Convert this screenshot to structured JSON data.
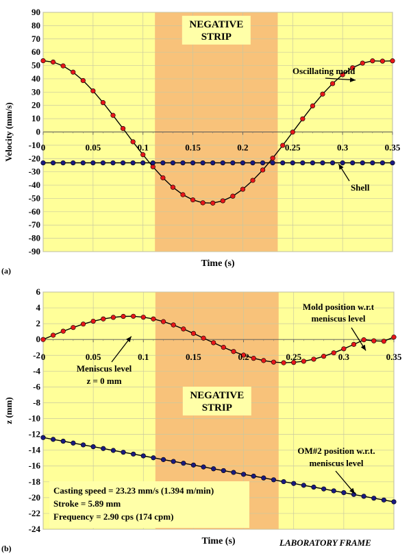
{
  "chart_data": [
    {
      "type": "line",
      "panel_label": "(a)",
      "xlabel": "Time (s)",
      "ylabel": "Velocity (mm/s)",
      "xlim": [
        0,
        0.35
      ],
      "ylim": [
        -90,
        90
      ],
      "x_ticks": [
        0,
        0.05,
        0.1,
        0.15,
        0.2,
        0.25,
        0.3,
        0.35
      ],
      "x_tick_labels": [
        "0",
        "0.05",
        "0.1",
        "0.15",
        "0.2",
        "0.25",
        "0.3",
        "0.35"
      ],
      "y_ticks": [
        -90,
        -80,
        -70,
        -60,
        -50,
        -40,
        -30,
        -20,
        -10,
        0,
        10,
        20,
        30,
        40,
        50,
        60,
        70,
        80,
        90
      ],
      "y_tick_labels": [
        "-90",
        "-80",
        "-70",
        "-60",
        "-50",
        "-40",
        "-30",
        "-20",
        "-10",
        "0",
        "10",
        "20",
        "30",
        "40",
        "50",
        "60",
        "70",
        "80",
        "90"
      ],
      "grid": true,
      "negative_strip": {
        "label_lines": [
          "NEGATIVE",
          "STRIP"
        ],
        "x_range": [
          0.112,
          0.235
        ]
      },
      "series": [
        {
          "name": "Oscillating mold",
          "color": "#e8161a",
          "x": [
            0,
            0.01,
            0.02,
            0.03,
            0.04,
            0.05,
            0.06,
            0.07,
            0.08,
            0.09,
            0.1,
            0.11,
            0.12,
            0.13,
            0.14,
            0.15,
            0.16,
            0.17,
            0.18,
            0.19,
            0.2,
            0.21,
            0.22,
            0.23,
            0.24,
            0.25,
            0.26,
            0.27,
            0.28,
            0.29,
            0.3,
            0.31,
            0.32,
            0.33,
            0.34,
            0.35
          ],
          "values": [
            53.6,
            52.6,
            49.7,
            45.0,
            38.7,
            30.9,
            22.1,
            12.5,
            2.6,
            -7.4,
            -17.1,
            -26.2,
            -34.5,
            -41.6,
            -47.2,
            -51.1,
            -53.3,
            -53.5,
            -51.8,
            -48.3,
            -43.1,
            -36.4,
            -28.6,
            -19.7,
            -10.1,
            -0.1,
            9.9,
            19.6,
            28.5,
            36.4,
            43.1,
            48.3,
            51.8,
            53.5,
            53.3,
            53.5
          ]
        },
        {
          "name": "Shell",
          "color": "#1a1a80",
          "x": [
            0,
            0.01,
            0.02,
            0.03,
            0.04,
            0.05,
            0.06,
            0.07,
            0.08,
            0.09,
            0.1,
            0.11,
            0.12,
            0.13,
            0.14,
            0.15,
            0.16,
            0.17,
            0.18,
            0.19,
            0.2,
            0.21,
            0.22,
            0.23,
            0.24,
            0.25,
            0.26,
            0.27,
            0.28,
            0.29,
            0.3,
            0.31,
            0.32,
            0.33,
            0.34,
            0.35
          ],
          "values": [
            -23.23,
            -23.23,
            -23.23,
            -23.23,
            -23.23,
            -23.23,
            -23.23,
            -23.23,
            -23.23,
            -23.23,
            -23.23,
            -23.23,
            -23.23,
            -23.23,
            -23.23,
            -23.23,
            -23.23,
            -23.23,
            -23.23,
            -23.23,
            -23.23,
            -23.23,
            -23.23,
            -23.23,
            -23.23,
            -23.23,
            -23.23,
            -23.23,
            -23.23,
            -23.23,
            -23.23,
            -23.23,
            -23.23,
            -23.23,
            -23.23,
            -23.23
          ]
        }
      ],
      "annotations": [
        "Oscillating mold",
        "Shell"
      ]
    },
    {
      "type": "line",
      "panel_label": "(b)",
      "xlabel": "Time (s)",
      "ylabel": "z (mm)",
      "xlim": [
        0,
        0.35
      ],
      "ylim": [
        -24,
        6
      ],
      "x_ticks": [
        0,
        0.05,
        0.1,
        0.15,
        0.2,
        0.25,
        0.3,
        0.35
      ],
      "x_tick_labels": [
        "0",
        "0.05",
        "0.1",
        "0.15",
        "0.2",
        "0.25",
        "0.3",
        "0.35"
      ],
      "y_ticks": [
        -24,
        -22,
        -20,
        -18,
        -16,
        -14,
        -12,
        -10,
        -8,
        -6,
        -4,
        -2,
        0,
        2,
        4,
        6
      ],
      "y_tick_labels": [
        "-24",
        "-22",
        "-20",
        "-18",
        "-16",
        "-14",
        "-12",
        "-10",
        "-8",
        "-6",
        "-4",
        "-2",
        "0",
        "2",
        "4",
        "6"
      ],
      "grid": true,
      "negative_strip": {
        "label_lines": [
          "NEGATIVE",
          "STRIP"
        ],
        "x_range": [
          0.112,
          0.235
        ]
      },
      "series": [
        {
          "name": "Mold position w.r.t meniscus level",
          "color": "#e8161a",
          "x": [
            0,
            0.01,
            0.02,
            0.03,
            0.04,
            0.05,
            0.06,
            0.07,
            0.08,
            0.09,
            0.1,
            0.11,
            0.12,
            0.13,
            0.14,
            0.15,
            0.16,
            0.17,
            0.18,
            0.19,
            0.2,
            0.21,
            0.22,
            0.23,
            0.24,
            0.25,
            0.26,
            0.27,
            0.28,
            0.29,
            0.3,
            0.31,
            0.32,
            0.33,
            0.34,
            0.35
          ],
          "values": [
            0.0,
            0.54,
            1.05,
            1.52,
            1.95,
            2.31,
            2.6,
            2.8,
            2.92,
            2.94,
            2.82,
            2.6,
            2.26,
            1.84,
            1.33,
            0.77,
            0.17,
            -0.41,
            -0.99,
            -1.52,
            -1.98,
            -2.38,
            -2.66,
            -2.86,
            -2.94,
            -2.9,
            -2.75,
            -2.49,
            -2.12,
            -1.69,
            -1.18,
            -0.62,
            -0.04,
            -0.17,
            -0.22,
            0.3
          ]
        },
        {
          "name": "OM#2 position w.r.t. meniscus level",
          "color": "#1a1a80",
          "x": [
            0,
            0.01,
            0.02,
            0.03,
            0.04,
            0.05,
            0.06,
            0.07,
            0.08,
            0.09,
            0.1,
            0.11,
            0.12,
            0.13,
            0.14,
            0.15,
            0.16,
            0.17,
            0.18,
            0.19,
            0.2,
            0.21,
            0.22,
            0.23,
            0.24,
            0.25,
            0.26,
            0.27,
            0.28,
            0.29,
            0.3,
            0.31,
            0.32,
            0.33,
            0.34,
            0.35
          ],
          "values": [
            -12.4,
            -12.63,
            -12.86,
            -13.1,
            -13.33,
            -13.56,
            -13.79,
            -14.03,
            -14.26,
            -14.49,
            -14.72,
            -14.96,
            -15.19,
            -15.42,
            -15.65,
            -15.88,
            -16.12,
            -16.35,
            -16.58,
            -16.81,
            -17.05,
            -17.28,
            -17.51,
            -17.74,
            -17.98,
            -18.21,
            -18.44,
            -18.67,
            -18.9,
            -19.14,
            -19.37,
            -19.6,
            -19.83,
            -20.07,
            -20.3,
            -20.53
          ]
        }
      ],
      "annotations": {
        "mold_label_lines": [
          "Mold position w.r.t",
          "meniscus level"
        ],
        "meniscus_label_lines": [
          "Meniscus level",
          "z = 0 mm"
        ],
        "om_label_lines": [
          "OM#2 position w.r.t.",
          "meniscus level"
        ],
        "info_lines": [
          "Casting speed = 23.23 mm/s (1.394 m/min)",
          "Stroke = 5.89 mm",
          "Frequency = 2.90 cps (174 cpm)"
        ],
        "frame_label": "LABORATORY FRAME"
      }
    }
  ]
}
